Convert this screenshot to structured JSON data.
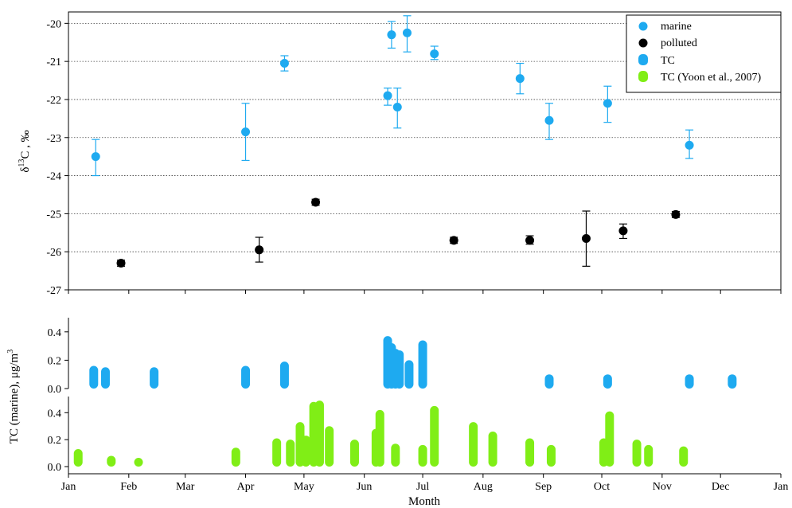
{
  "colors": {
    "marine": "#1eaaf0",
    "polluted": "#000000",
    "tc": "#1eaaf0",
    "yoon": "#80ee16"
  },
  "chart_data": [
    {
      "type": "scatter",
      "title": "",
      "xlabel": "",
      "ylabel_delta": "δ",
      "ylabel_sup": "13",
      "ylabel_rest": "C , ‰",
      "ylim": [
        -27.0,
        -19.7
      ],
      "yticks": [
        -27,
        -26,
        -25,
        -24,
        -23,
        -22,
        -21,
        -20
      ],
      "grid": true,
      "legend_position": "top-right",
      "series": [
        {
          "name": "marine",
          "points": [
            {
              "x": "2000-01-15",
              "y": -23.5,
              "lo": -24.0,
              "hi": -23.05
            },
            {
              "x": "2000-04-01",
              "y": -22.85,
              "lo": -23.6,
              "hi": -22.1
            },
            {
              "x": "2000-04-21",
              "y": -21.05,
              "lo": -21.25,
              "hi": -20.85
            },
            {
              "x": "2000-06-13",
              "y": -21.9,
              "lo": -22.15,
              "hi": -21.7
            },
            {
              "x": "2000-06-15",
              "y": -20.3,
              "lo": -20.65,
              "hi": -19.95
            },
            {
              "x": "2000-06-18",
              "y": -22.2,
              "lo": -22.75,
              "hi": -21.7
            },
            {
              "x": "2000-06-23",
              "y": -20.25,
              "lo": -20.75,
              "hi": -19.8
            },
            {
              "x": "2000-07-07",
              "y": -20.8,
              "lo": -20.95,
              "hi": -20.6
            },
            {
              "x": "2000-08-20",
              "y": -21.45,
              "lo": -21.85,
              "hi": -21.05
            },
            {
              "x": "2000-09-04",
              "y": -22.55,
              "lo": -23.05,
              "hi": -22.1
            },
            {
              "x": "2000-10-04",
              "y": -22.1,
              "lo": -22.6,
              "hi": -21.65
            },
            {
              "x": "2000-11-15",
              "y": -23.2,
              "lo": -23.55,
              "hi": -22.8
            }
          ]
        },
        {
          "name": "polluted",
          "points": [
            {
              "x": "2000-01-28",
              "y": -26.3,
              "lo": -26.38,
              "hi": -26.22
            },
            {
              "x": "2000-04-08",
              "y": -25.95,
              "lo": -26.27,
              "hi": -25.62
            },
            {
              "x": "2000-05-07",
              "y": -24.7,
              "lo": -24.78,
              "hi": -24.62
            },
            {
              "x": "2000-07-17",
              "y": -25.7,
              "lo": -25.78,
              "hi": -25.62
            },
            {
              "x": "2000-08-25",
              "y": -25.7,
              "lo": -25.8,
              "hi": -25.58
            },
            {
              "x": "2000-09-23",
              "y": -25.65,
              "lo": -26.38,
              "hi": -24.93
            },
            {
              "x": "2000-10-12",
              "y": -25.45,
              "lo": -25.65,
              "hi": -25.27
            },
            {
              "x": "2000-11-08",
              "y": -25.02,
              "lo": -25.1,
              "hi": -24.94
            }
          ]
        }
      ]
    },
    {
      "type": "bar",
      "ylabel": "TC (marine), μg/m",
      "ylabel_sup": "3",
      "ylim": [
        0,
        0.5
      ],
      "yticks": [
        "0.0",
        "0.2",
        "0.4"
      ],
      "series": [
        {
          "name": "TC",
          "bars": [
            {
              "x": "2000-01-14",
              "v": 0.16
            },
            {
              "x": "2000-01-20",
              "v": 0.15
            },
            {
              "x": "2000-02-14",
              "v": 0.15
            },
            {
              "x": "2000-04-01",
              "v": 0.16
            },
            {
              "x": "2000-04-21",
              "v": 0.19
            },
            {
              "x": "2000-06-13",
              "v": 0.37
            },
            {
              "x": "2000-06-15",
              "v": 0.32
            },
            {
              "x": "2000-06-17",
              "v": 0.28
            },
            {
              "x": "2000-06-19",
              "v": 0.27
            },
            {
              "x": "2000-06-24",
              "v": 0.2
            },
            {
              "x": "2000-07-01",
              "v": 0.34
            },
            {
              "x": "2000-09-04",
              "v": 0.1
            },
            {
              "x": "2000-10-04",
              "v": 0.1
            },
            {
              "x": "2000-11-15",
              "v": 0.1
            },
            {
              "x": "2000-12-07",
              "v": 0.1
            }
          ]
        }
      ]
    },
    {
      "type": "bar",
      "ylabel": "TC (marine), μg/m",
      "ylabel_sup": "3",
      "ylim": [
        0,
        0.52
      ],
      "yticks": [
        "0.0",
        "0.2",
        "0.4"
      ],
      "series": [
        {
          "name": "TC (Yoon et al., 2007)",
          "bars": [
            {
              "x": "2000-01-06",
              "v": 0.13
            },
            {
              "x": "2000-01-23",
              "v": 0.08
            },
            {
              "x": "2000-02-06",
              "v": 0.06
            },
            {
              "x": "2000-03-27",
              "v": 0.14
            },
            {
              "x": "2000-04-17",
              "v": 0.21
            },
            {
              "x": "2000-04-24",
              "v": 0.2
            },
            {
              "x": "2000-04-29",
              "v": 0.33
            },
            {
              "x": "2000-05-02",
              "v": 0.23
            },
            {
              "x": "2000-05-06",
              "v": 0.48
            },
            {
              "x": "2000-05-09",
              "v": 0.49
            },
            {
              "x": "2000-05-14",
              "v": 0.3
            },
            {
              "x": "2000-05-27",
              "v": 0.2
            },
            {
              "x": "2000-06-07",
              "v": 0.28
            },
            {
              "x": "2000-06-09",
              "v": 0.42
            },
            {
              "x": "2000-06-17",
              "v": 0.17
            },
            {
              "x": "2000-07-01",
              "v": 0.16
            },
            {
              "x": "2000-07-07",
              "v": 0.45
            },
            {
              "x": "2000-07-27",
              "v": 0.33
            },
            {
              "x": "2000-08-06",
              "v": 0.26
            },
            {
              "x": "2000-08-25",
              "v": 0.21
            },
            {
              "x": "2000-09-05",
              "v": 0.16
            },
            {
              "x": "2000-10-02",
              "v": 0.21
            },
            {
              "x": "2000-10-05",
              "v": 0.41
            },
            {
              "x": "2000-10-19",
              "v": 0.2
            },
            {
              "x": "2000-10-25",
              "v": 0.16
            },
            {
              "x": "2000-11-12",
              "v": 0.15
            }
          ]
        }
      ]
    }
  ],
  "x_axis": {
    "label": "Month",
    "ticks": [
      "Jan",
      "Feb",
      "Mar",
      "Apr",
      "May",
      "Jun",
      "Jul",
      "Aug",
      "Sep",
      "Oct",
      "Nov",
      "Dec",
      "Jan"
    ],
    "range": [
      "2000-01-01",
      "2001-01-01"
    ]
  },
  "legend": [
    {
      "label": "marine",
      "symbol": "dot",
      "color": "#1eaaf0"
    },
    {
      "label": "polluted",
      "symbol": "dot",
      "color": "#000000"
    },
    {
      "label": "TC",
      "symbol": "bar",
      "color": "#1eaaf0"
    },
    {
      "label": "TC (Yoon et al., 2007)",
      "symbol": "bar",
      "color": "#80ee16"
    }
  ]
}
